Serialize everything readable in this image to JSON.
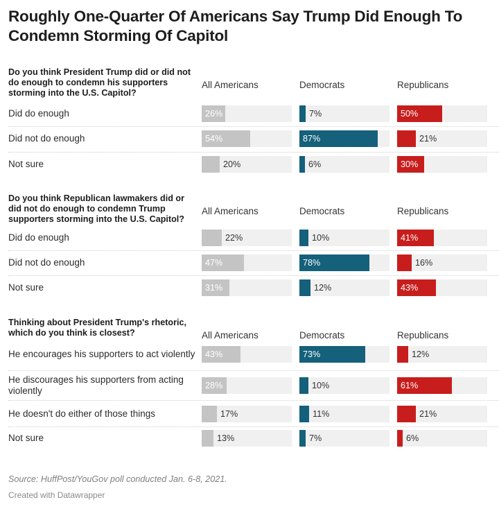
{
  "title": "Roughly One-Quarter Of Americans Say Trump Did Enough To Condemn Storming Of Capitol",
  "source": "Source: HuffPost/YouGov poll conducted Jan. 6-8, 2021.",
  "credit": "Created with Datawrapper",
  "colors": {
    "all_americans": "#c4c4c4",
    "democrats": "#15607a",
    "republicans": "#c71e1d",
    "track": "#f0f0f0"
  },
  "chart_data": {
    "type": "bar",
    "unit": "%",
    "xlim": [
      0,
      100
    ],
    "columns": [
      "All Americans",
      "Democrats",
      "Republicans"
    ],
    "groups": [
      {
        "question": "Do you think President Trump did or did not do enough to condemn his supporters storming into the U.S. Capitol?",
        "rows": [
          {
            "label": "Did do enough",
            "values": [
              26,
              7,
              50
            ]
          },
          {
            "label": "Did not do enough",
            "values": [
              54,
              87,
              21
            ]
          },
          {
            "label": "Not sure",
            "values": [
              20,
              6,
              30
            ]
          }
        ]
      },
      {
        "question": "Do you think Republican lawmakers did or did not do enough to condemn Trump supporters storming into the U.S. Capitol?",
        "rows": [
          {
            "label": "Did do enough",
            "values": [
              22,
              10,
              41
            ]
          },
          {
            "label": "Did not do enough",
            "values": [
              47,
              78,
              16
            ]
          },
          {
            "label": "Not sure",
            "values": [
              31,
              12,
              43
            ]
          }
        ]
      },
      {
        "question": "Thinking about President Trump's rhetoric, which do you think is closest?",
        "rows": [
          {
            "label": "He encourages his supporters to act violently",
            "values": [
              43,
              73,
              12
            ]
          },
          {
            "label": "He discourages his supporters from acting violently",
            "values": [
              28,
              10,
              61
            ]
          },
          {
            "label": "He doesn't do either of those things",
            "values": [
              17,
              11,
              21
            ]
          },
          {
            "label": "Not sure",
            "values": [
              13,
              7,
              6
            ]
          }
        ]
      }
    ]
  }
}
